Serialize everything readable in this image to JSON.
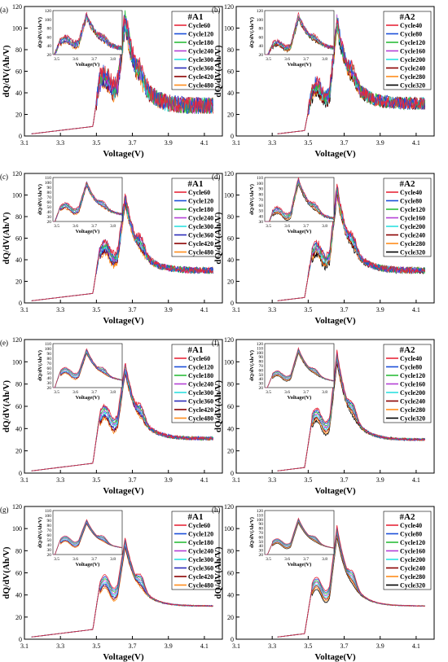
{
  "figure": {
    "y_axis_label": "dQ/dV(Ah/V)",
    "x_axis_label": "Voltage(V)",
    "inset_y_label": "dQ/dV(Ah/V)",
    "inset_x_label": "Voltage(V)"
  },
  "colors": {
    "series_A1": [
      "#000000",
      "#e8283a",
      "#1b4fd8",
      "#2bbd3a",
      "#b43fd6",
      "#2de0e0",
      "#2a2ab8",
      "#8b0000",
      "#ff8c1a"
    ],
    "series_A2": [
      "#000000",
      "#e8283a",
      "#1b4fd8",
      "#2bbd3a",
      "#b43fd6",
      "#2de0e0",
      "#8b0000",
      "#ff8c1a"
    ]
  },
  "chart_data": [
    {
      "panel": "(a)",
      "type": "line",
      "title": "#A1",
      "xlim": [
        3.1,
        4.2
      ],
      "ylim": [
        0,
        120
      ],
      "xticks": [
        3.1,
        3.3,
        3.5,
        3.7,
        3.9,
        4.1
      ],
      "yticks": [
        0,
        20,
        40,
        60,
        80,
        100,
        120
      ],
      "series": [
        "Cycle60",
        "Cycle120",
        "Cycle180",
        "Cycle240",
        "Cycle300",
        "Cycle360",
        "Cycle420",
        "Cycle480"
      ],
      "noise": 8,
      "peak_voltage": 3.66,
      "peak_value": 115,
      "shoulder_voltage": 3.56,
      "shoulder_value": 55,
      "tail_value": 28,
      "start_voltage": 3.14,
      "inset": {
        "xlim": [
          3.48,
          3.85
        ],
        "ylim": [
          20,
          120
        ],
        "xticks": [
          3.5,
          3.6,
          3.7,
          3.8
        ],
        "yticks": [
          20,
          40,
          60,
          80,
          100,
          120
        ]
      }
    },
    {
      "panel": "(b)",
      "type": "line",
      "title": "#A2",
      "xlim": [
        3.1,
        4.2
      ],
      "ylim": [
        0,
        120
      ],
      "xticks": [
        3.1,
        3.3,
        3.5,
        3.7,
        3.9,
        4.1
      ],
      "yticks": [
        0,
        20,
        40,
        60,
        80,
        100,
        120
      ],
      "series": [
        "Cycle40",
        "Cycle80",
        "Cycle120",
        "Cycle160",
        "Cycle200",
        "Cycle240",
        "Cycle280",
        "Cycle320"
      ],
      "noise": 6,
      "peak_voltage": 3.66,
      "peak_value": 112,
      "shoulder_voltage": 3.56,
      "shoulder_value": 45,
      "tail_value": 30,
      "start_voltage": 3.33,
      "inset": {
        "xlim": [
          3.48,
          3.85
        ],
        "ylim": [
          20,
          120
        ],
        "xticks": [
          3.5,
          3.6,
          3.7,
          3.8
        ],
        "yticks": [
          20,
          40,
          60,
          80,
          100,
          120
        ]
      }
    },
    {
      "panel": "(c)",
      "type": "line",
      "title": "#A1",
      "xlim": [
        3.1,
        4.2
      ],
      "ylim": [
        0,
        120
      ],
      "xticks": [
        3.1,
        3.3,
        3.5,
        3.7,
        3.9,
        4.1
      ],
      "yticks": [
        0,
        20,
        40,
        60,
        80,
        100,
        120
      ],
      "series": [
        "Cycle60",
        "Cycle120",
        "Cycle180",
        "Cycle240",
        "Cycle300",
        "Cycle360",
        "Cycle420",
        "Cycle480"
      ],
      "noise": 3,
      "peak_voltage": 3.66,
      "peak_value": 102,
      "shoulder_voltage": 3.56,
      "shoulder_value": 52,
      "tail_value": 30,
      "start_voltage": 3.14,
      "inset": {
        "xlim": [
          3.48,
          3.85
        ],
        "ylim": [
          20,
          110
        ],
        "xticks": [
          3.5,
          3.6,
          3.7,
          3.8
        ],
        "yticks": [
          20,
          30,
          40,
          50,
          60,
          70,
          80,
          90,
          100,
          110
        ]
      }
    },
    {
      "panel": "(d)",
      "type": "line",
      "title": "#A2",
      "xlim": [
        3.1,
        4.2
      ],
      "ylim": [
        0,
        120
      ],
      "xticks": [
        3.1,
        3.3,
        3.5,
        3.7,
        3.9,
        4.1
      ],
      "yticks": [
        0,
        20,
        40,
        60,
        80,
        100,
        120
      ],
      "series": [
        "Cycle40",
        "Cycle80",
        "Cycle120",
        "Cycle160",
        "Cycle200",
        "Cycle240",
        "Cycle280",
        "Cycle320"
      ],
      "noise": 3,
      "peak_voltage": 3.66,
      "peak_value": 110,
      "shoulder_voltage": 3.56,
      "shoulder_value": 50,
      "tail_value": 30,
      "start_voltage": 3.33,
      "inset": {
        "xlim": [
          3.48,
          3.85
        ],
        "ylim": [
          30,
          110
        ],
        "xticks": [
          3.5,
          3.6,
          3.7,
          3.8
        ],
        "yticks": [
          30,
          40,
          50,
          60,
          70,
          80,
          90,
          100,
          110
        ]
      }
    },
    {
      "panel": "(e)",
      "type": "line",
      "title": "#A1",
      "xlim": [
        3.1,
        4.2
      ],
      "ylim": [
        0,
        120
      ],
      "xticks": [
        3.1,
        3.3,
        3.5,
        3.7,
        3.9,
        4.1
      ],
      "yticks": [
        0,
        20,
        40,
        60,
        80,
        100,
        120
      ],
      "series": [
        "Cycle60",
        "Cycle120",
        "Cycle180",
        "Cycle240",
        "Cycle300",
        "Cycle360",
        "Cycle420",
        "Cycle480"
      ],
      "noise": 1.5,
      "peak_voltage": 3.66,
      "peak_value": 100,
      "shoulder_voltage": 3.56,
      "shoulder_value": 55,
      "tail_value": 31,
      "start_voltage": 3.14,
      "inset": {
        "xlim": [
          3.48,
          3.85
        ],
        "ylim": [
          20,
          110
        ],
        "xticks": [
          3.5,
          3.6,
          3.7,
          3.8
        ],
        "yticks": [
          20,
          30,
          40,
          50,
          60,
          70,
          80,
          90,
          100,
          110
        ]
      }
    },
    {
      "panel": "(f)",
      "type": "line",
      "title": "#A2",
      "xlim": [
        3.1,
        4.2
      ],
      "ylim": [
        0,
        120
      ],
      "xticks": [
        3.1,
        3.3,
        3.5,
        3.7,
        3.9,
        4.1
      ],
      "yticks": [
        0,
        20,
        40,
        60,
        80,
        100,
        120
      ],
      "series": [
        "Cycle40",
        "Cycle80",
        "Cycle120",
        "Cycle160",
        "Cycle200",
        "Cycle240",
        "Cycle280",
        "Cycle320"
      ],
      "noise": 1,
      "peak_voltage": 3.66,
      "peak_value": 110,
      "shoulder_voltage": 3.56,
      "shoulder_value": 52,
      "tail_value": 30,
      "start_voltage": 3.33,
      "inset": {
        "xlim": [
          3.48,
          3.85
        ],
        "ylim": [
          20,
          120
        ],
        "xticks": [
          3.5,
          3.6,
          3.7,
          3.8
        ],
        "yticks": [
          20,
          30,
          40,
          50,
          60,
          70,
          80,
          90,
          100,
          110,
          120
        ]
      }
    },
    {
      "panel": "(g)",
      "type": "line",
      "title": "#A1",
      "xlim": [
        3.1,
        4.2
      ],
      "ylim": [
        0,
        120
      ],
      "xticks": [
        3.1,
        3.3,
        3.5,
        3.7,
        3.9,
        4.1
      ],
      "yticks": [
        0,
        20,
        40,
        60,
        80,
        100,
        120
      ],
      "series": [
        "Cycle60",
        "Cycle120",
        "Cycle180",
        "Cycle240",
        "Cycle300",
        "Cycle360",
        "Cycle420",
        "Cycle480"
      ],
      "noise": 0.5,
      "peak_voltage": 3.66,
      "peak_value": 92,
      "shoulder_voltage": 3.56,
      "shoulder_value": 52,
      "tail_value": 30,
      "start_voltage": 3.14,
      "inset": {
        "xlim": [
          3.48,
          3.85
        ],
        "ylim": [
          20,
          110
        ],
        "xticks": [
          3.5,
          3.6,
          3.7,
          3.8
        ],
        "yticks": [
          20,
          30,
          40,
          50,
          60,
          70,
          80,
          90,
          100,
          110
        ]
      }
    },
    {
      "panel": "(h)",
      "type": "line",
      "title": "#A2",
      "xlim": [
        3.1,
        4.2
      ],
      "ylim": [
        0,
        120
      ],
      "xticks": [
        3.1,
        3.3,
        3.5,
        3.7,
        3.9,
        4.1
      ],
      "yticks": [
        0,
        20,
        40,
        60,
        80,
        100,
        120
      ],
      "series": [
        "Cycle40",
        "Cycle80",
        "Cycle120",
        "Cycle160",
        "Cycle200",
        "Cycle240",
        "Cycle280",
        "Cycle320"
      ],
      "noise": 0.3,
      "peak_voltage": 3.66,
      "peak_value": 103,
      "shoulder_voltage": 3.56,
      "shoulder_value": 50,
      "tail_value": 30,
      "start_voltage": 3.33,
      "inset": {
        "xlim": [
          3.48,
          3.85
        ],
        "ylim": [
          20,
          120
        ],
        "xticks": [
          3.5,
          3.6,
          3.7,
          3.8
        ],
        "yticks": [
          20,
          30,
          40,
          50,
          60,
          70,
          80,
          90,
          100,
          110,
          120
        ]
      }
    }
  ]
}
